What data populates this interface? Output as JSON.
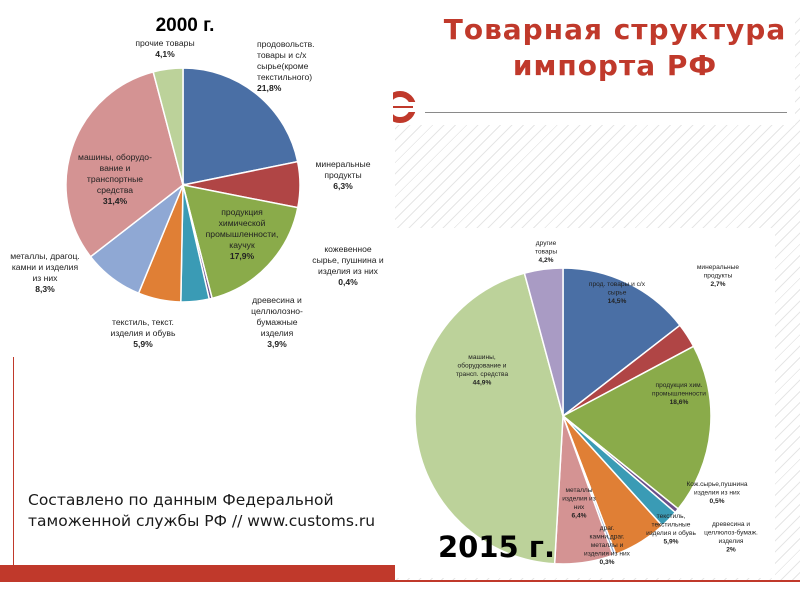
{
  "slide": {
    "title": "Товарная структура импорта РФ",
    "source_note": "Составлено по данным Федеральной таможенной службы РФ // www.customs.ru",
    "accent_color": "#c0392b"
  },
  "chart_data": [
    {
      "type": "pie",
      "title": "2000 г.",
      "slices": [
        {
          "label": "продовольств. товары и с/х сырье(кроме текстильного)",
          "value": 21.8,
          "value_label": "21,8%",
          "color": "#4a6fa5"
        },
        {
          "label": "минеральные продукты",
          "value": 6.3,
          "value_label": "6,3%",
          "color": "#b04545"
        },
        {
          "label": "продукция химической промышленности, каучук",
          "value": 17.9,
          "value_label": "17,9%",
          "color": "#8aab4a"
        },
        {
          "label": "кожевенное сырье, пушнина и изделия из них",
          "value": 0.4,
          "value_label": "0,4%",
          "color": "#6b4f8a"
        },
        {
          "label": "древесина и целлюлозно-бумажные изделия",
          "value": 3.9,
          "value_label": "3,9%",
          "color": "#3a9bb5"
        },
        {
          "label": "текстиль, текст. изделия и обувь",
          "value": 5.9,
          "value_label": "5,9%",
          "color": "#e07f35"
        },
        {
          "label": "металлы, драгоц. камни и изделия из них",
          "value": 8.3,
          "value_label": "8,3%",
          "color": "#8fa8d4"
        },
        {
          "label": "машины, оборудо-вание и транспортные средства",
          "value": 31.4,
          "value_label": "31,4%",
          "color": "#d49393"
        },
        {
          "label": "прочие товары",
          "value": 4.1,
          "value_label": "4,1%",
          "color": "#bcd29a"
        }
      ]
    },
    {
      "type": "pie",
      "title": "2015 г.",
      "slices": [
        {
          "label": "прод. товары и с/х сырье",
          "value": 14.5,
          "value_label": "14,5%",
          "color": "#4a6fa5"
        },
        {
          "label": "минеральные продукты",
          "value": 2.7,
          "value_label": "2,7%",
          "color": "#b04545"
        },
        {
          "label": "продукция хим. промышленности",
          "value": 18.6,
          "value_label": "18,6%",
          "color": "#8aab4a"
        },
        {
          "label": "Кож.сырье,пушнина изделия из них",
          "value": 0.5,
          "value_label": "0,5%",
          "color": "#6b4f8a"
        },
        {
          "label": "древесина и целлюлоз-бумаж. изделия",
          "value": 2,
          "value_label": "2%",
          "color": "#3a9bb5"
        },
        {
          "label": "текстиль, текстильные изделия и обувь",
          "value": 5.9,
          "value_label": "5,9%",
          "color": "#e07f35"
        },
        {
          "label": "драг. камни,драг. металлы и изделия из них",
          "value": 0.3,
          "value_label": "0,3%",
          "color": "#8fa8d4"
        },
        {
          "label": "металлы и изделия из них",
          "value": 6.4,
          "value_label": "6,4%",
          "color": "#d49393"
        },
        {
          "label": "машины, оборудование и трансп. средства",
          "value": 44.9,
          "value_label": "44,9%",
          "color": "#bcd29a"
        },
        {
          "label": "другие товары",
          "value": 4.2,
          "value_label": "4,2%",
          "color": "#a99bc4"
        }
      ]
    }
  ]
}
